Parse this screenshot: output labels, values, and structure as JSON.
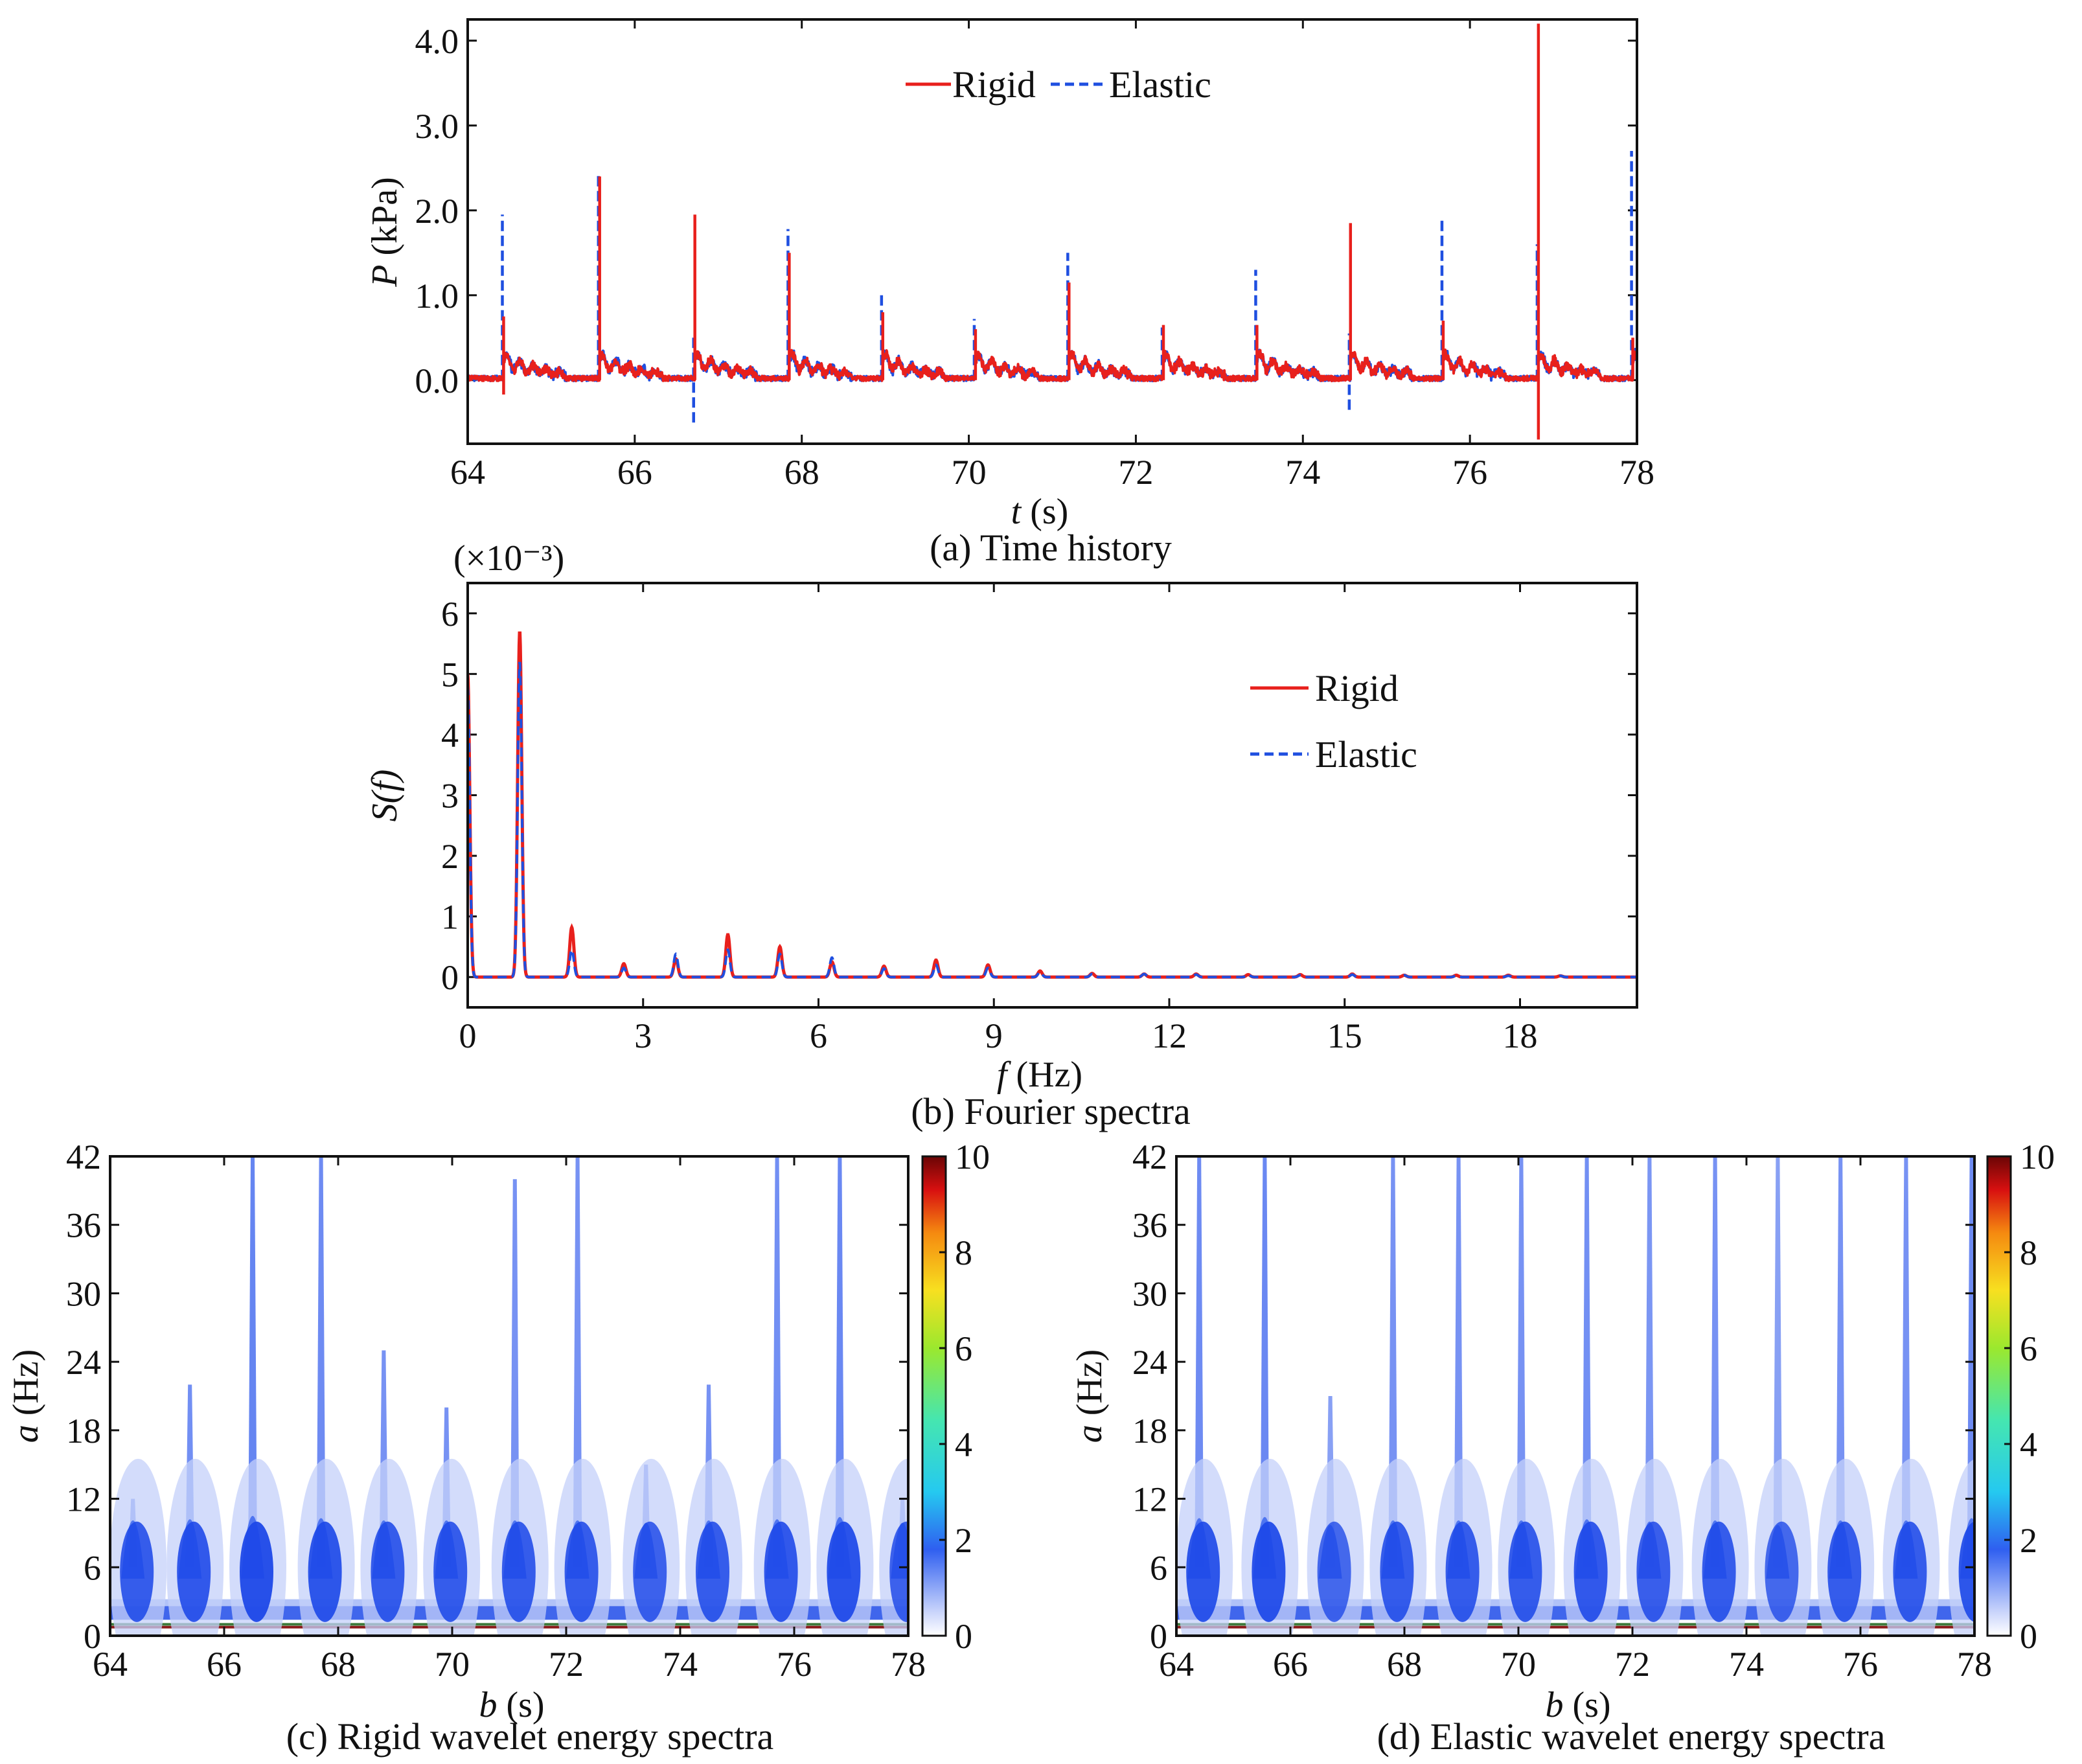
{
  "chart_data": [
    {
      "id": "a",
      "type": "line",
      "caption": "(a) Time history",
      "ylabel_italic": "P",
      "ylabel_rest": " (kPa)",
      "xlabel_italic": "t",
      "xlabel_rest": " (s)",
      "xlim": [
        64,
        78
      ],
      "ylim": [
        -0.75,
        4.25
      ],
      "xticks": [
        "64",
        "66",
        "68",
        "70",
        "72",
        "74",
        "76",
        "78"
      ],
      "yticks": [
        "0.0",
        "1.0",
        "2.0",
        "3.0",
        "4.0"
      ],
      "legend_position": "top-center",
      "colors": {
        "Rigid": "#e8201c",
        "Elastic": "#1f4fe0"
      },
      "impact_times": [
        64.43,
        65.58,
        66.72,
        67.85,
        68.97,
        70.08,
        71.2,
        72.33,
        73.45,
        74.57,
        75.68,
        76.82,
        77.95
      ],
      "series": [
        {
          "name": "Rigid",
          "style": "solid",
          "peaks": [
            0.75,
            2.4,
            1.95,
            1.5,
            0.8,
            0.6,
            1.15,
            0.65,
            0.65,
            1.85,
            0.7,
            4.2,
            0.5
          ],
          "dips": [
            -0.17,
            0,
            0,
            0,
            0,
            0,
            0,
            0,
            0,
            0,
            0,
            -0.7,
            0
          ]
        },
        {
          "name": "Elastic",
          "style": "dashed",
          "peaks": [
            1.95,
            2.45,
            0.55,
            1.78,
            1.05,
            0.72,
            1.5,
            0.62,
            1.3,
            0.55,
            1.9,
            1.6,
            2.7
          ],
          "dips": [
            0,
            0,
            -0.5,
            0,
            0,
            0,
            0,
            0,
            0,
            -0.35,
            0,
            0,
            0
          ]
        }
      ]
    },
    {
      "id": "b",
      "type": "line",
      "caption": "(b) Fourier spectra",
      "scale_note": "(×10⁻³)",
      "ylabel": "S(f)",
      "xlabel_italic": "f",
      "xlabel_rest": " (Hz)",
      "xlim": [
        0,
        20
      ],
      "ylim": [
        -0.5,
        6.5
      ],
      "xticks": [
        "0",
        "3",
        "6",
        "9",
        "12",
        "15",
        "18"
      ],
      "yticks": [
        "0",
        "1",
        "2",
        "3",
        "4",
        "5",
        "6"
      ],
      "legend_position": "top-right",
      "colors": {
        "Rigid": "#e8201c",
        "Elastic": "#1f4fe0"
      },
      "series": [
        {
          "name": "Rigid",
          "style": "solid",
          "peaks_f": [
            0.0,
            0.89,
            1.78,
            2.67,
            3.56,
            4.45,
            5.34,
            6.23,
            7.12,
            8.01,
            8.9,
            9.79,
            10.68,
            11.57,
            12.46,
            13.35,
            14.24,
            15.13,
            16.02,
            16.91,
            17.8,
            18.69
          ],
          "peaks_s": [
            5.0,
            5.7,
            0.82,
            0.22,
            0.3,
            0.7,
            0.5,
            0.25,
            0.18,
            0.28,
            0.2,
            0.1,
            0.06,
            0.05,
            0.05,
            0.04,
            0.04,
            0.05,
            0.03,
            0.03,
            0.03,
            0.02
          ]
        },
        {
          "name": "Elastic",
          "style": "dashed",
          "peaks_f": [
            0.0,
            0.89,
            1.78,
            2.67,
            3.56,
            4.45,
            5.34,
            6.23,
            7.12,
            8.01,
            8.9,
            9.79,
            10.68,
            11.57,
            12.46,
            13.35,
            14.24,
            15.13,
            16.02,
            16.91,
            17.8,
            18.69
          ],
          "peaks_s": [
            4.8,
            5.2,
            0.45,
            0.15,
            0.38,
            0.45,
            0.38,
            0.32,
            0.14,
            0.2,
            0.15,
            0.08,
            0.05,
            0.05,
            0.04,
            0.04,
            0.03,
            0.04,
            0.03,
            0.02,
            0.02,
            0.02
          ]
        }
      ]
    },
    {
      "id": "c",
      "type": "heatmap",
      "caption": "(c) Rigid wavelet energy spectra",
      "ylabel_italic": "a",
      "ylabel_rest": " (Hz)",
      "xlabel_italic": "b",
      "xlabel_rest": " (s)",
      "xlim": [
        64,
        78
      ],
      "ylim": [
        0,
        42
      ],
      "xticks": [
        "64",
        "66",
        "68",
        "70",
        "72",
        "74",
        "76",
        "78"
      ],
      "yticks": [
        "0",
        "6",
        "12",
        "18",
        "24",
        "30",
        "36",
        "42"
      ],
      "colorbar_range": [
        0,
        10
      ],
      "colorbar_ticks": [
        "0",
        "2",
        "4",
        "6",
        "8",
        "10"
      ],
      "blobs": [
        {
          "t": 64.4,
          "top": 12,
          "strength": 0.8
        },
        {
          "t": 65.4,
          "top": 22,
          "strength": 0.85
        },
        {
          "t": 66.5,
          "top": 42,
          "strength": 1.0
        },
        {
          "t": 67.7,
          "top": 42,
          "strength": 0.9
        },
        {
          "t": 68.8,
          "top": 25,
          "strength": 0.8
        },
        {
          "t": 69.9,
          "top": 20,
          "strength": 0.8
        },
        {
          "t": 71.1,
          "top": 40,
          "strength": 0.8
        },
        {
          "t": 72.2,
          "top": 42,
          "strength": 0.8
        },
        {
          "t": 73.4,
          "top": 15,
          "strength": 0.7
        },
        {
          "t": 74.5,
          "top": 22,
          "strength": 0.8
        },
        {
          "t": 75.7,
          "top": 42,
          "strength": 0.85
        },
        {
          "t": 76.8,
          "top": 42,
          "strength": 0.95
        },
        {
          "t": 77.9,
          "top": 12,
          "strength": 0.7
        }
      ]
    },
    {
      "id": "d",
      "type": "heatmap",
      "caption": "(d) Elastic wavelet energy spectra",
      "ylabel_italic": "a",
      "ylabel_rest": " (Hz)",
      "xlabel_italic": "b",
      "xlabel_rest": " (s)",
      "xlim": [
        64,
        78
      ],
      "ylim": [
        0,
        42
      ],
      "xticks": [
        "64",
        "66",
        "68",
        "70",
        "72",
        "74",
        "76",
        "78"
      ],
      "yticks": [
        "0",
        "6",
        "12",
        "18",
        "24",
        "30",
        "36",
        "42"
      ],
      "colorbar_range": [
        0,
        10
      ],
      "colorbar_ticks": [
        "0",
        "2",
        "4",
        "6",
        "8",
        "10"
      ],
      "blobs": [
        {
          "t": 64.4,
          "top": 42,
          "strength": 0.9
        },
        {
          "t": 65.55,
          "top": 42,
          "strength": 0.95
        },
        {
          "t": 66.7,
          "top": 21,
          "strength": 0.6
        },
        {
          "t": 67.8,
          "top": 42,
          "strength": 0.8
        },
        {
          "t": 68.95,
          "top": 42,
          "strength": 0.8
        },
        {
          "t": 70.05,
          "top": 42,
          "strength": 0.8
        },
        {
          "t": 71.2,
          "top": 42,
          "strength": 0.85
        },
        {
          "t": 72.3,
          "top": 42,
          "strength": 0.75
        },
        {
          "t": 73.45,
          "top": 42,
          "strength": 0.8
        },
        {
          "t": 74.55,
          "top": 42,
          "strength": 0.6
        },
        {
          "t": 75.65,
          "top": 42,
          "strength": 0.8
        },
        {
          "t": 76.8,
          "top": 42,
          "strength": 0.8
        },
        {
          "t": 77.95,
          "top": 42,
          "strength": 0.9
        }
      ]
    }
  ]
}
